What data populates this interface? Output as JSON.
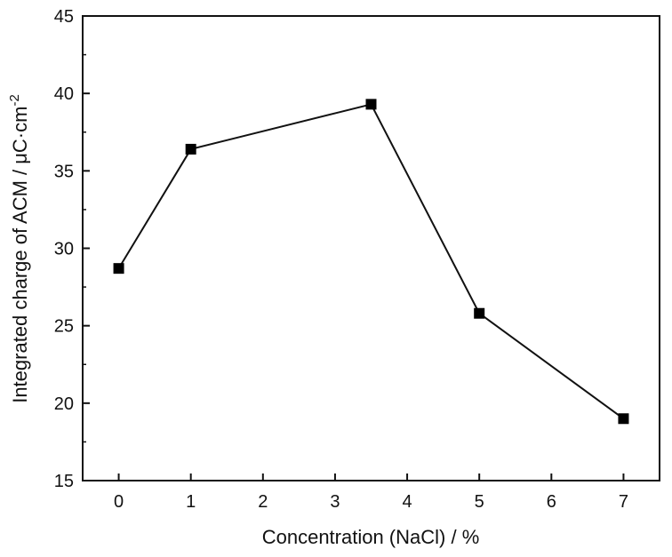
{
  "chart_data": {
    "type": "line",
    "title": "",
    "xlabel": "Concentration (NaCl) / %",
    "ylabel": "Integrated charge of ACM / μC·cm",
    "ylabel_superscript": "-2",
    "x_tick_labels": [
      "0",
      "1",
      "2",
      "3",
      "4",
      "5",
      "6",
      "7"
    ],
    "y_ticks": [
      15,
      20,
      25,
      30,
      35,
      40,
      45
    ],
    "xlim": [
      -0.5,
      7.5
    ],
    "ylim": [
      15,
      45
    ],
    "grid": false,
    "x_axis_note": "categorical-style x axis: ticks 0-7 evenly spaced; point at 3.5 plotted halfway between 3 and 4",
    "series": [
      {
        "x": [
          0,
          1,
          3.5,
          5,
          7
        ],
        "y": [
          28.7,
          36.4,
          39.3,
          25.8,
          19.0
        ],
        "marker": "square",
        "color": "#000000"
      }
    ]
  }
}
